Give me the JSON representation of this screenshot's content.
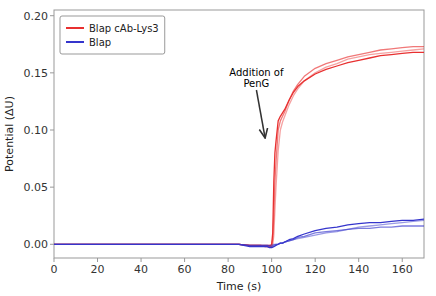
{
  "chart_data": {
    "type": "line",
    "xlabel": "Time (s)",
    "ylabel": "Potential (ΔU)",
    "xlim": [
      0,
      170
    ],
    "ylim": [
      -0.012,
      0.205
    ],
    "xticks": [
      0,
      20,
      40,
      60,
      80,
      100,
      120,
      140,
      160
    ],
    "yticks": [
      {
        "value": 0.0,
        "label": "0.00"
      },
      {
        "value": 0.05,
        "label": "0.05"
      },
      {
        "value": 0.1,
        "label": "0.10"
      },
      {
        "value": 0.15,
        "label": "0.15"
      },
      {
        "value": 0.2,
        "label": "0.20"
      }
    ],
    "grid": false,
    "legend": "upper left",
    "series": [
      {
        "name": "Blap cAb-Lys3",
        "color": "#e83030",
        "x": [
          0,
          5,
          10,
          15,
          20,
          25,
          30,
          35,
          40,
          45,
          50,
          55,
          60,
          65,
          70,
          75,
          80,
          85,
          90,
          93,
          95,
          97,
          98,
          99,
          99.5,
          100,
          100.5,
          101,
          101.5,
          102,
          103,
          104,
          105,
          106,
          108,
          110,
          112,
          115,
          120,
          125,
          130,
          135,
          140,
          145,
          150,
          155,
          160,
          165,
          170
        ],
        "values": [
          0.0,
          0.0,
          0.0,
          0.0,
          0.0,
          0.0,
          0.0,
          0.0,
          0.0,
          0.0,
          0.0,
          0.0,
          0.0,
          0.0,
          0.0,
          0.0,
          0.0,
          0.0,
          -0.001,
          -0.001,
          -0.001,
          -0.001,
          -0.001,
          -0.001,
          -0.001,
          0.0,
          0.01,
          0.055,
          0.08,
          0.09,
          0.108,
          0.112,
          0.115,
          0.118,
          0.126,
          0.133,
          0.138,
          0.143,
          0.149,
          0.153,
          0.156,
          0.159,
          0.161,
          0.163,
          0.165,
          0.166,
          0.167,
          0.168,
          0.168
        ]
      },
      {
        "name": "Blap cAb-Lys3",
        "color": "#e83030",
        "x": [
          0,
          5,
          10,
          15,
          20,
          25,
          30,
          35,
          40,
          45,
          50,
          55,
          60,
          65,
          70,
          75,
          80,
          85,
          90,
          93,
          95,
          97,
          98,
          99,
          99.5,
          100,
          100.5,
          101,
          101.5,
          102,
          103,
          104,
          105,
          106,
          108,
          110,
          112,
          115,
          120,
          125,
          130,
          135,
          140,
          145,
          150,
          155,
          160,
          165,
          170
        ],
        "values": [
          0.0,
          0.0,
          0.0,
          0.0,
          0.0,
          0.0,
          0.0,
          0.0,
          0.0,
          0.0,
          0.0,
          0.0,
          0.0,
          0.0,
          0.0,
          0.0,
          0.0,
          0.0,
          -0.001,
          -0.001,
          -0.001,
          -0.002,
          -0.002,
          -0.002,
          -0.002,
          -0.002,
          0.005,
          0.025,
          0.055,
          0.072,
          0.1,
          0.108,
          0.112,
          0.116,
          0.126,
          0.134,
          0.14,
          0.147,
          0.154,
          0.158,
          0.161,
          0.164,
          0.166,
          0.168,
          0.17,
          0.171,
          0.172,
          0.173,
          0.173
        ]
      },
      {
        "name": "Blap cAb-Lys3",
        "color": "#e83030",
        "x": [
          0,
          5,
          10,
          15,
          20,
          25,
          30,
          35,
          40,
          45,
          50,
          55,
          60,
          65,
          70,
          75,
          80,
          85,
          90,
          93,
          95,
          97,
          98,
          99,
          99.5,
          100,
          100.5,
          101,
          101.5,
          102,
          103,
          104,
          105,
          106,
          108,
          110,
          112,
          115,
          120,
          125,
          130,
          135,
          140,
          145,
          150,
          155,
          160,
          165,
          170
        ],
        "values": [
          0.0,
          0.0,
          0.0,
          0.0,
          0.0,
          0.0,
          0.0,
          0.0,
          0.0,
          0.0,
          0.0,
          0.0,
          0.0,
          0.0,
          0.0,
          0.0,
          0.0,
          0.0,
          -0.001,
          -0.001,
          -0.001,
          -0.002,
          -0.002,
          -0.002,
          -0.002,
          -0.002,
          -0.001,
          0.008,
          0.03,
          0.05,
          0.082,
          0.1,
          0.107,
          0.112,
          0.122,
          0.13,
          0.136,
          0.143,
          0.15,
          0.155,
          0.158,
          0.162,
          0.164,
          0.166,
          0.167,
          0.168,
          0.169,
          0.17,
          0.171
        ]
      },
      {
        "name": "Blap",
        "color": "#3535cc",
        "x": [
          0,
          5,
          10,
          15,
          20,
          25,
          30,
          35,
          40,
          45,
          50,
          55,
          60,
          65,
          70,
          75,
          80,
          85,
          90,
          93,
          95,
          97,
          98,
          99,
          100,
          101,
          102,
          103,
          104,
          105,
          106,
          108,
          110,
          112,
          115,
          120,
          125,
          130,
          135,
          140,
          145,
          150,
          155,
          160,
          165,
          170
        ],
        "values": [
          0.0,
          0.0,
          0.0,
          0.0,
          0.0,
          0.0,
          0.0,
          0.0,
          0.0,
          0.0,
          0.0,
          0.0,
          0.0,
          0.0,
          0.0,
          0.0,
          0.0,
          0.0,
          -0.001,
          -0.001,
          -0.001,
          -0.001,
          -0.001,
          -0.001,
          -0.001,
          0.0,
          0.0,
          0.0,
          0.001,
          0.001,
          0.002,
          0.003,
          0.004,
          0.005,
          0.006,
          0.008,
          0.01,
          0.011,
          0.013,
          0.015,
          0.016,
          0.017,
          0.018,
          0.019,
          0.02,
          0.021
        ]
      },
      {
        "name": "Blap",
        "color": "#3535cc",
        "x": [
          0,
          5,
          10,
          15,
          20,
          25,
          30,
          35,
          40,
          45,
          50,
          55,
          60,
          65,
          70,
          75,
          80,
          85,
          90,
          93,
          95,
          97,
          98,
          99,
          100,
          101,
          102,
          103,
          104,
          105,
          106,
          108,
          110,
          112,
          115,
          120,
          125,
          130,
          135,
          140,
          145,
          150,
          155,
          160,
          165,
          170
        ],
        "values": [
          0.0,
          0.0,
          0.0,
          0.0,
          0.0,
          0.0,
          0.0,
          0.0,
          0.0,
          0.0,
          0.0,
          0.0,
          0.0,
          0.0,
          0.0,
          0.0,
          0.0,
          0.0,
          -0.002,
          -0.002,
          -0.002,
          -0.002,
          -0.002,
          -0.003,
          -0.003,
          -0.002,
          -0.001,
          0.0,
          0.001,
          0.001,
          0.002,
          0.004,
          0.005,
          0.007,
          0.009,
          0.012,
          0.014,
          0.015,
          0.017,
          0.018,
          0.019,
          0.019,
          0.02,
          0.021,
          0.021,
          0.022
        ]
      },
      {
        "name": "Blap",
        "color": "#3535cc",
        "x": [
          0,
          5,
          10,
          15,
          20,
          25,
          30,
          35,
          40,
          45,
          50,
          55,
          60,
          65,
          70,
          75,
          80,
          85,
          90,
          93,
          95,
          97,
          98,
          99,
          100,
          101,
          102,
          103,
          104,
          105,
          106,
          108,
          110,
          112,
          115,
          120,
          125,
          130,
          135,
          140,
          145,
          150,
          155,
          160,
          165,
          170
        ],
        "values": [
          0.0,
          0.0,
          0.0,
          0.0,
          0.0,
          0.0,
          0.0,
          0.0,
          0.0,
          0.0,
          0.0,
          0.0,
          0.0,
          0.0,
          0.0,
          0.0,
          0.0,
          0.0,
          -0.001,
          -0.001,
          -0.001,
          -0.001,
          -0.001,
          -0.002,
          -0.002,
          -0.001,
          0.0,
          0.0,
          0.001,
          0.001,
          0.002,
          0.003,
          0.004,
          0.006,
          0.007,
          0.01,
          0.011,
          0.012,
          0.013,
          0.014,
          0.014,
          0.015,
          0.015,
          0.016,
          0.016,
          0.016
        ]
      }
    ],
    "annotations": [
      {
        "text": "Addition of\nPenG",
        "x": 93,
        "y": 0.135,
        "arrow_x": 97,
        "arrow_y": 0.093
      }
    ]
  }
}
